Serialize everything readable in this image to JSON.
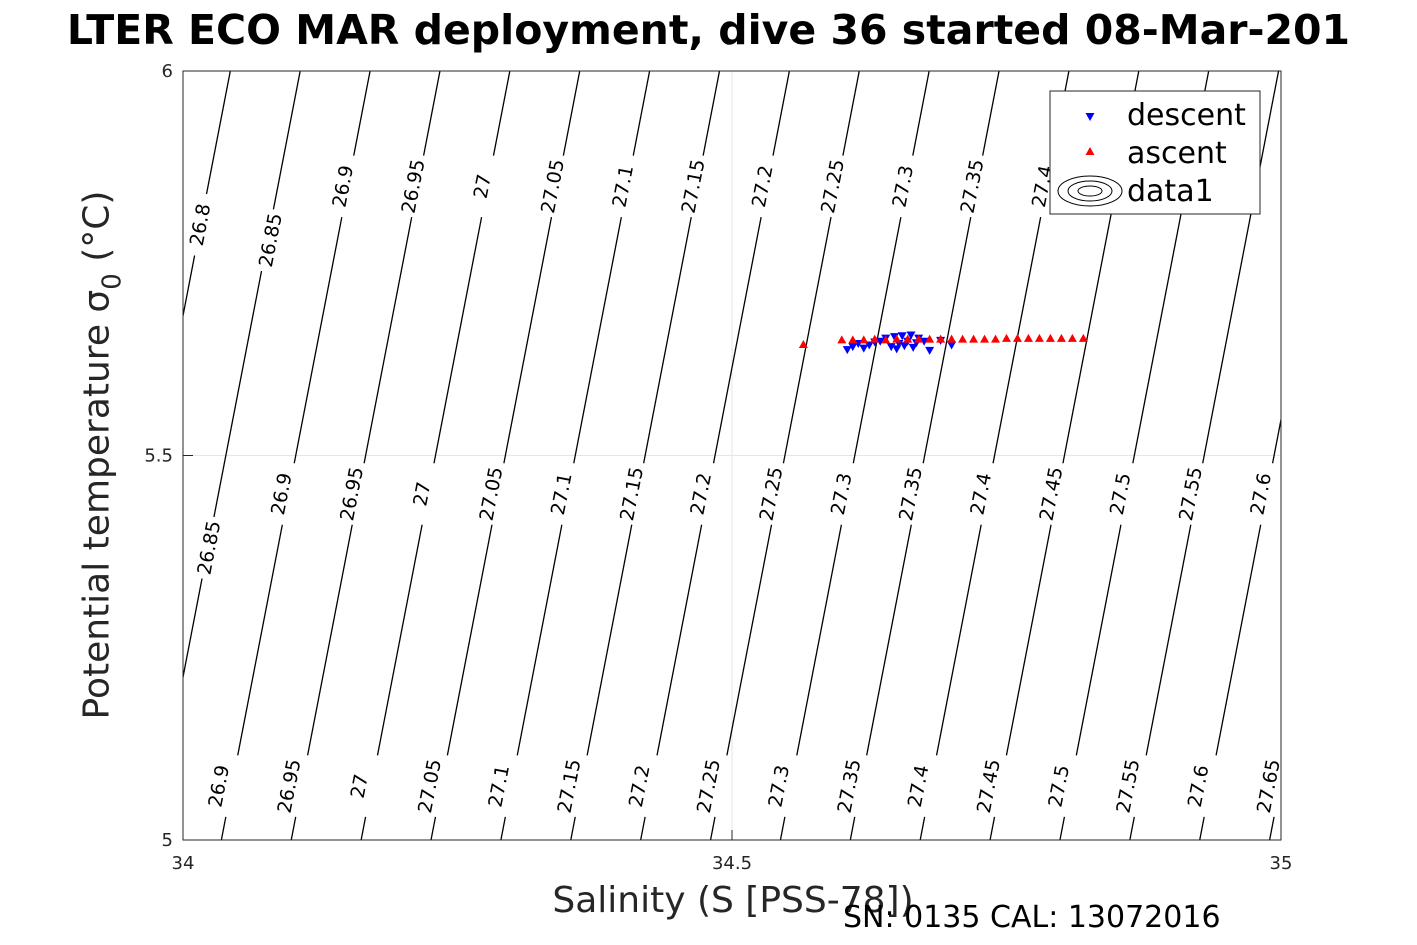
{
  "title": "LTER ECO MAR deployment, dive 36 started 08-Mar-201",
  "xlabel": "Salinity (S [PSS-78])",
  "ylabel": {
    "text": "Potential temperature ",
    "sigma": "σ",
    "sub": "0",
    "unit": " (°C)"
  },
  "footer": "SN: 0135  CAL: 13072016",
  "chart_data": {
    "type": "scatter",
    "xlim": [
      34,
      35
    ],
    "ylim": [
      5,
      6
    ],
    "x_ticks": [
      "34",
      "34.5",
      "35"
    ],
    "y_ticks": [
      "5",
      "5.5",
      "6"
    ],
    "grid": true,
    "legend_position": "top-right",
    "legend": [
      "descent",
      "ascent",
      "data1"
    ],
    "colors": {
      "descent": "#0000ff",
      "ascent": "#ff0000",
      "contour": "#000000"
    },
    "contour_levels": [
      "26.8",
      "26.85",
      "26.9",
      "26.95",
      "27",
      "27.05",
      "27.1",
      "27.15",
      "27.2",
      "27.25",
      "27.3",
      "27.35",
      "27.4",
      "27.45",
      "27.5",
      "27.55",
      "27.6",
      "27.65"
    ],
    "contour_labels": [
      {
        "level": "26.8",
        "s": 34.016,
        "t": 5.8
      },
      {
        "level": "26.9",
        "s": 34.146,
        "t": 5.85
      },
      {
        "level": "26.95",
        "s": 34.21,
        "t": 5.85
      },
      {
        "level": "27",
        "s": 34.273,
        "t": 5.85
      },
      {
        "level": "27.05",
        "s": 34.337,
        "t": 5.85
      },
      {
        "level": "27.1",
        "s": 34.401,
        "t": 5.85
      },
      {
        "level": "27.15",
        "s": 34.465,
        "t": 5.85
      },
      {
        "level": "27.2",
        "s": 34.528,
        "t": 5.85
      },
      {
        "level": "27.25",
        "s": 34.592,
        "t": 5.85
      },
      {
        "level": "27.3",
        "s": 34.656,
        "t": 5.85
      },
      {
        "level": "27.35",
        "s": 34.719,
        "t": 5.85
      },
      {
        "level": "27.4",
        "s": 34.783,
        "t": 5.85
      },
      {
        "level": "26.85",
        "s": 34.08,
        "t": 5.78
      },
      {
        "level": "26.85",
        "s": 34.024,
        "t": 5.38
      },
      {
        "level": "26.9",
        "s": 34.09,
        "t": 5.45
      },
      {
        "level": "26.95",
        "s": 34.154,
        "t": 5.45
      },
      {
        "level": "27",
        "s": 34.218,
        "t": 5.45
      },
      {
        "level": "27.05",
        "s": 34.281,
        "t": 5.45
      },
      {
        "level": "27.1",
        "s": 34.345,
        "t": 5.45
      },
      {
        "level": "27.15",
        "s": 34.409,
        "t": 5.45
      },
      {
        "level": "27.2",
        "s": 34.472,
        "t": 5.45
      },
      {
        "level": "27.25",
        "s": 34.536,
        "t": 5.45
      },
      {
        "level": "27.3",
        "s": 34.6,
        "t": 5.45
      },
      {
        "level": "27.35",
        "s": 34.663,
        "t": 5.45
      },
      {
        "level": "27.4",
        "s": 34.727,
        "t": 5.45
      },
      {
        "level": "27.45",
        "s": 34.791,
        "t": 5.45
      },
      {
        "level": "27.5",
        "s": 34.854,
        "t": 5.45
      },
      {
        "level": "27.55",
        "s": 34.918,
        "t": 5.45
      },
      {
        "level": "27.6",
        "s": 34.982,
        "t": 5.45
      },
      {
        "level": "26.9",
        "s": 34.033,
        "t": 5.07
      },
      {
        "level": "26.95",
        "s": 34.097,
        "t": 5.07
      },
      {
        "level": "27",
        "s": 34.161,
        "t": 5.07
      },
      {
        "level": "27.05",
        "s": 34.225,
        "t": 5.07
      },
      {
        "level": "27.1",
        "s": 34.288,
        "t": 5.07
      },
      {
        "level": "27.15",
        "s": 34.352,
        "t": 5.07
      },
      {
        "level": "27.2",
        "s": 34.416,
        "t": 5.07
      },
      {
        "level": "27.25",
        "s": 34.479,
        "t": 5.07
      },
      {
        "level": "27.3",
        "s": 34.543,
        "t": 5.07
      },
      {
        "level": "27.35",
        "s": 34.607,
        "t": 5.07
      },
      {
        "level": "27.4",
        "s": 34.67,
        "t": 5.07
      },
      {
        "level": "27.45",
        "s": 34.734,
        "t": 5.07
      },
      {
        "level": "27.5",
        "s": 34.798,
        "t": 5.07
      },
      {
        "level": "27.55",
        "s": 34.861,
        "t": 5.07
      },
      {
        "level": "27.6",
        "s": 34.925,
        "t": 5.07
      },
      {
        "level": "27.65",
        "s": 34.989,
        "t": 5.07
      }
    ],
    "series": [
      {
        "name": "descent",
        "marker": "triangle-down",
        "x": [
          34.605,
          34.61,
          34.615,
          34.62,
          34.625,
          34.63,
          34.635,
          34.64,
          34.645,
          34.648,
          34.65,
          34.652,
          34.655,
          34.657,
          34.66,
          34.663,
          34.665,
          34.668,
          34.67,
          34.675,
          34.68,
          34.69,
          34.7
        ],
        "y": [
          5.637,
          5.641,
          5.645,
          5.639,
          5.643,
          5.647,
          5.648,
          5.652,
          5.641,
          5.654,
          5.638,
          5.645,
          5.655,
          5.642,
          5.648,
          5.656,
          5.64,
          5.646,
          5.652,
          5.648,
          5.636,
          5.649,
          5.643
        ]
      },
      {
        "name": "ascent",
        "marker": "triangle-up",
        "x": [
          34.565,
          34.6,
          34.61,
          34.62,
          34.63,
          34.64,
          34.65,
          34.66,
          34.67,
          34.68,
          34.69,
          34.7,
          34.71,
          34.72,
          34.73,
          34.74,
          34.75,
          34.76,
          34.77,
          34.78,
          34.79,
          34.8,
          34.81,
          34.82
        ],
        "y": [
          5.645,
          5.651,
          5.651,
          5.651,
          5.652,
          5.651,
          5.652,
          5.652,
          5.652,
          5.652,
          5.652,
          5.652,
          5.652,
          5.652,
          5.652,
          5.652,
          5.653,
          5.653,
          5.653,
          5.653,
          5.653,
          5.653,
          5.653,
          5.653
        ]
      }
    ]
  }
}
